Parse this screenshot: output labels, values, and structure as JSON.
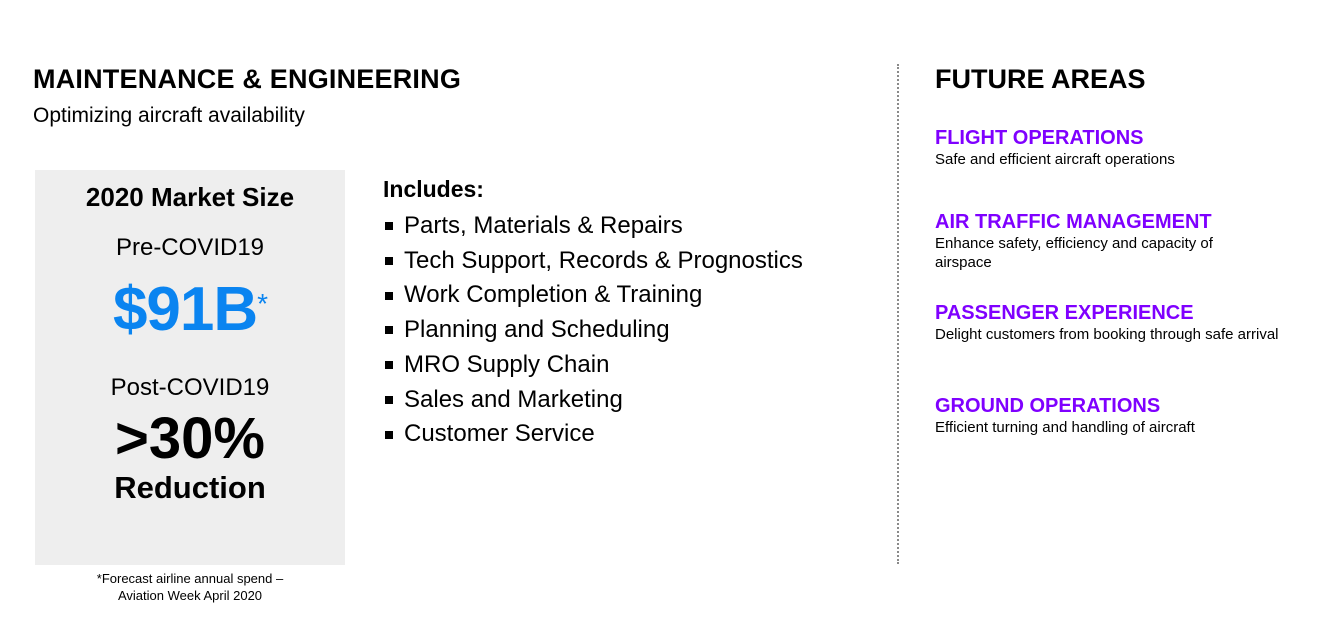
{
  "header": {
    "title": "MAINTENANCE & ENGINEERING",
    "subtitle": "Optimizing aircraft availability"
  },
  "market": {
    "heading": "2020 Market Size",
    "pre_label": "Pre-COVID19",
    "pre_value": "$91B",
    "asterisk": "*",
    "post_label": "Post-COVID19",
    "post_value": ">30%",
    "post_value_label": "Reduction",
    "footnote_line1": "*Forecast airline annual spend –",
    "footnote_line2": "Aviation Week April 2020"
  },
  "includes": {
    "heading": "Includes:",
    "items": [
      "Parts, Materials & Repairs",
      "Tech Support, Records & Prognostics",
      "Work Completion & Training",
      "Planning and Scheduling",
      "MRO Supply Chain",
      "Sales and Marketing",
      "Customer Service"
    ]
  },
  "future": {
    "title": "FUTURE AREAS",
    "areas": [
      {
        "title": "FLIGHT OPERATIONS",
        "desc": "Safe and efficient aircraft operations"
      },
      {
        "title": "AIR TRAFFIC MANAGEMENT",
        "desc": "Enhance safety, efficiency and capacity of airspace"
      },
      {
        "title": "PASSENGER EXPERIENCE",
        "desc": "Delight customers from booking through safe arrival"
      },
      {
        "title": "GROUND OPERATIONS",
        "desc": "Efficient turning and handling of aircraft"
      }
    ]
  },
  "colors": {
    "accent_purple": "#7f00ff",
    "accent_blue": "#0a84f0",
    "box_gray": "#eeeeee",
    "divider_gray": "#8a8a8a"
  }
}
